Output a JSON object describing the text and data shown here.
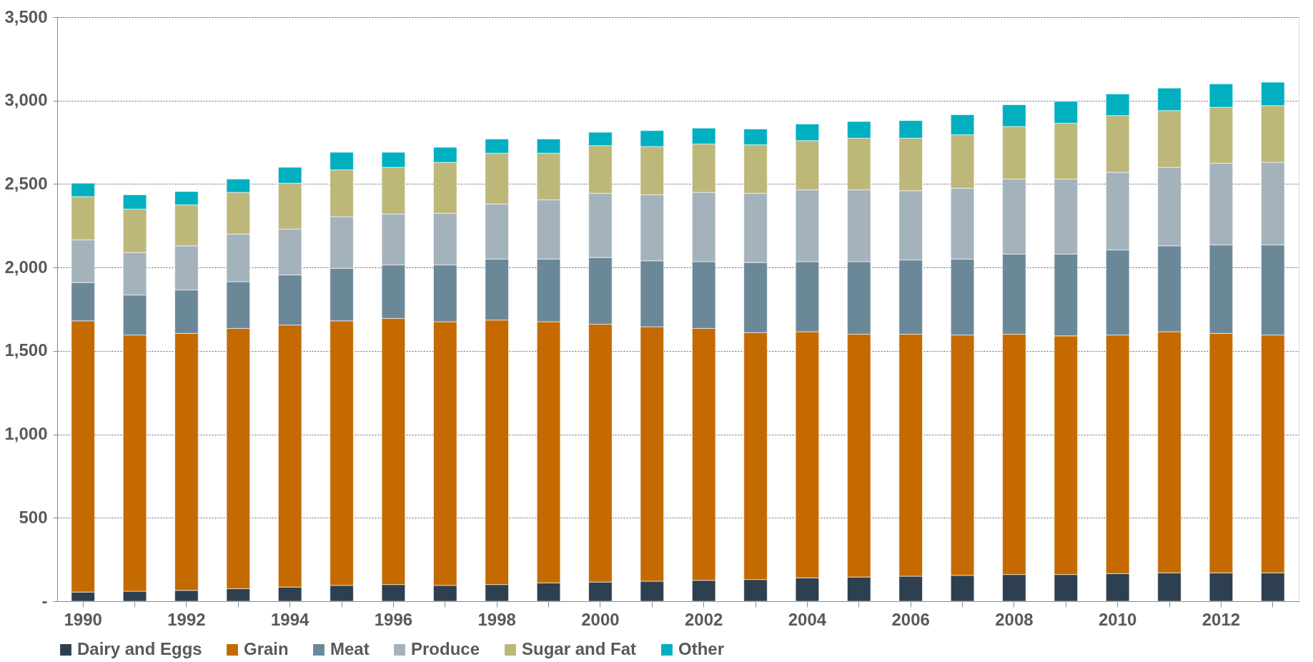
{
  "chart_data": {
    "type": "bar",
    "stacked": true,
    "categories": [
      "1990",
      null,
      "1992",
      null,
      "1994",
      null,
      "1996",
      null,
      "1998",
      null,
      "2000",
      null,
      "2002",
      null,
      "2004",
      null,
      "2006",
      null,
      "2008",
      null,
      "2010",
      null,
      "2012",
      null
    ],
    "series": [
      {
        "name": "Dairy and Eggs",
        "color": "#2e3f4f",
        "values": [
          55,
          60,
          65,
          75,
          85,
          95,
          100,
          95,
          100,
          110,
          115,
          120,
          125,
          130,
          140,
          145,
          150,
          155,
          160,
          160,
          165,
          170,
          170,
          170
        ]
      },
      {
        "name": "Grain",
        "color": "#c46a00",
        "values": [
          1625,
          1535,
          1540,
          1560,
          1570,
          1585,
          1595,
          1580,
          1585,
          1565,
          1545,
          1525,
          1510,
          1480,
          1475,
          1455,
          1450,
          1440,
          1440,
          1430,
          1430,
          1445,
          1435,
          1425
        ]
      },
      {
        "name": "Meat",
        "color": "#6b8899",
        "values": [
          230,
          240,
          260,
          280,
          300,
          315,
          320,
          340,
          365,
          375,
          400,
          395,
          400,
          420,
          420,
          435,
          445,
          455,
          480,
          490,
          510,
          515,
          530,
          540
        ]
      },
      {
        "name": "Produce",
        "color": "#a4b2bb",
        "values": [
          255,
          255,
          265,
          285,
          275,
          310,
          305,
          310,
          330,
          355,
          385,
          395,
          415,
          415,
          430,
          430,
          415,
          425,
          450,
          450,
          465,
          470,
          490,
          495
        ]
      },
      {
        "name": "Sugar and Fat",
        "color": "#bdb77a",
        "values": [
          260,
          260,
          245,
          250,
          275,
          280,
          280,
          305,
          305,
          280,
          285,
          290,
          290,
          290,
          295,
          310,
          315,
          320,
          315,
          335,
          340,
          340,
          335,
          340
        ]
      },
      {
        "name": "Other",
        "color": "#00b0c0",
        "values": [
          80,
          85,
          80,
          80,
          95,
          105,
          90,
          90,
          85,
          85,
          80,
          95,
          95,
          95,
          100,
          100,
          105,
          120,
          130,
          130,
          130,
          135,
          140,
          140
        ]
      }
    ],
    "ylim": [
      0,
      3500
    ],
    "yticks": [
      {
        "value": 0,
        "label": "-"
      },
      500,
      {
        "value": 1000,
        "label": "1,000"
      },
      {
        "value": 1500,
        "label": "1,500"
      },
      {
        "value": 2000,
        "label": "2,000"
      },
      {
        "value": 2500,
        "label": "2,500"
      },
      {
        "value": 3000,
        "label": "3,000"
      },
      {
        "value": 3500,
        "label": "3,500"
      }
    ],
    "grid": "y",
    "legend": "bottom"
  }
}
